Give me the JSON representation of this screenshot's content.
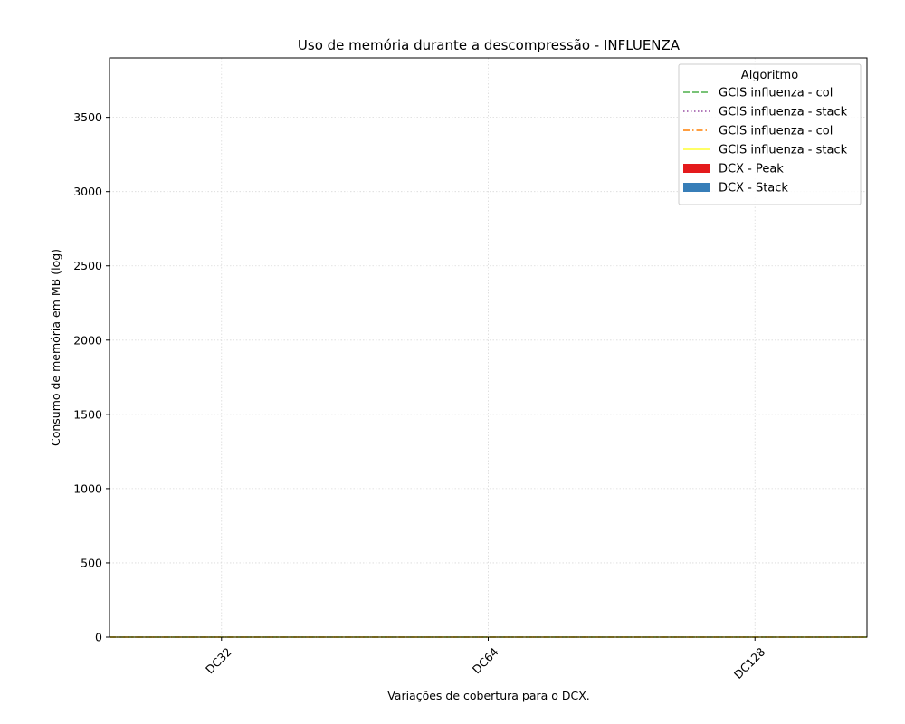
{
  "chart_data": {
    "type": "bar",
    "title": "Uso de memória durante a descompressão -  INFLUENZA",
    "xlabel": "Variações de cobertura para o DCX.",
    "ylabel": "Consumo de memória em MB (log)",
    "categories": [
      "DC32",
      "DC64",
      "DC128"
    ],
    "ylim": [
      0,
      3900
    ],
    "yticks": [
      0,
      500,
      1000,
      1500,
      2000,
      2500,
      3000,
      3500
    ],
    "grid": true,
    "legend": {
      "title": "Algoritmo",
      "placement": "top-right"
    },
    "series": [
      {
        "name": "GCIS influenza - col",
        "kind": "line",
        "style": "dashed",
        "color": "#4daf4a",
        "values": [
          0,
          0,
          0
        ]
      },
      {
        "name": "GCIS influenza - stack",
        "kind": "line",
        "style": "dotted",
        "color": "#984ea3",
        "values": [
          0,
          0,
          0
        ]
      },
      {
        "name": "GCIS influenza - col",
        "kind": "line",
        "style": "dashdot",
        "color": "#ff7f00",
        "values": [
          0,
          0,
          0
        ]
      },
      {
        "name": "GCIS influenza - stack",
        "kind": "line",
        "style": "solid",
        "color": "#ffff33",
        "values": [
          0,
          0,
          0
        ]
      },
      {
        "name": "DCX - Peak",
        "kind": "bar",
        "color": "#e41a1c",
        "values": [
          0,
          0,
          0
        ]
      },
      {
        "name": "DCX - Stack",
        "kind": "bar",
        "color": "#377eb8",
        "values": [
          0,
          0,
          0
        ]
      }
    ]
  }
}
